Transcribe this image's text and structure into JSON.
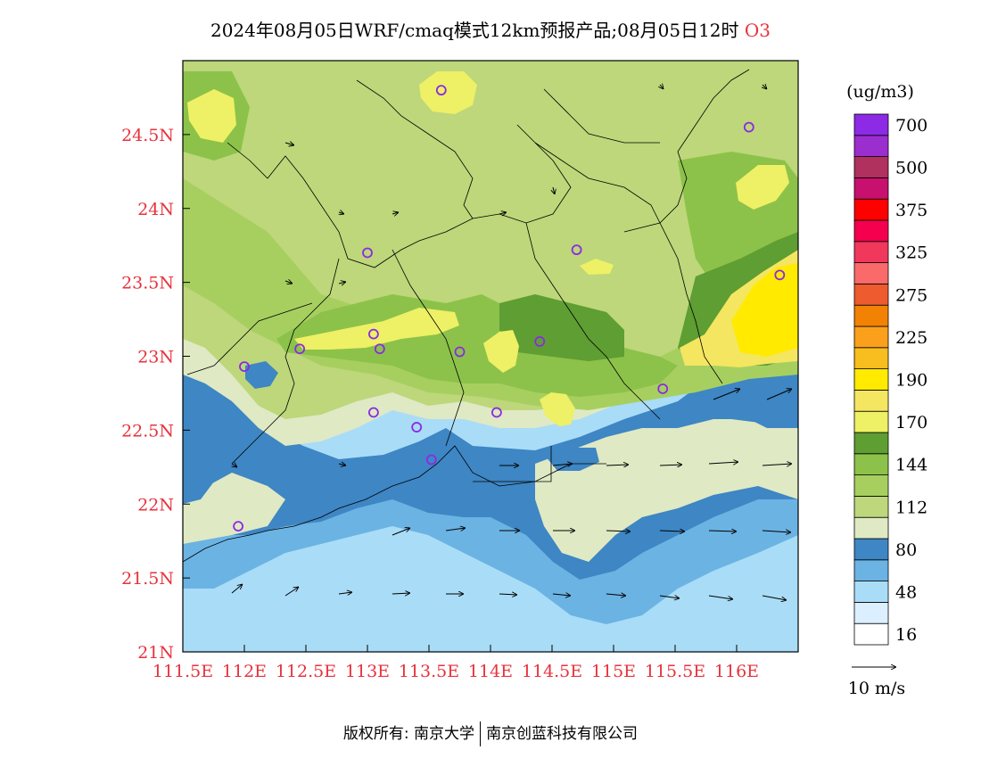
{
  "title": {
    "main": "2024年08月05日WRF/cmaq模式12km预报产品;08月05日12时",
    "variable": "O3"
  },
  "map": {
    "lon_range": [
      111.5,
      116.5
    ],
    "lat_range": [
      21,
      25
    ],
    "x_ticks": [
      {
        "value": 111.5,
        "label": "111.5E"
      },
      {
        "value": 112,
        "label": "112E"
      },
      {
        "value": 112.5,
        "label": "112.5E"
      },
      {
        "value": 113,
        "label": "113E"
      },
      {
        "value": 113.5,
        "label": "113.5E"
      },
      {
        "value": 114,
        "label": "114E"
      },
      {
        "value": 114.5,
        "label": "114.5E"
      },
      {
        "value": 115,
        "label": "115E"
      },
      {
        "value": 115.5,
        "label": "115.5E"
      },
      {
        "value": 116,
        "label": "116E"
      }
    ],
    "y_ticks": [
      {
        "value": 21,
        "label": "21N"
      },
      {
        "value": 21.5,
        "label": "21.5N"
      },
      {
        "value": 22,
        "label": "22N"
      },
      {
        "value": 22.5,
        "label": "22.5N"
      },
      {
        "value": 23,
        "label": "23N"
      },
      {
        "value": 23.5,
        "label": "23.5N"
      },
      {
        "value": 24,
        "label": "24N"
      },
      {
        "value": 24.5,
        "label": "24.5N"
      }
    ],
    "stations": [
      {
        "lon": 113.6,
        "lat": 24.8
      },
      {
        "lon": 116.1,
        "lat": 24.55
      },
      {
        "lon": 113.0,
        "lat": 23.7
      },
      {
        "lon": 114.7,
        "lat": 23.72
      },
      {
        "lon": 116.35,
        "lat": 23.55
      },
      {
        "lon": 112.45,
        "lat": 23.05
      },
      {
        "lon": 113.05,
        "lat": 23.15
      },
      {
        "lon": 113.1,
        "lat": 23.05
      },
      {
        "lon": 113.75,
        "lat": 23.03
      },
      {
        "lon": 114.4,
        "lat": 23.1
      },
      {
        "lon": 112.0,
        "lat": 22.93
      },
      {
        "lon": 115.4,
        "lat": 22.78
      },
      {
        "lon": 113.05,
        "lat": 22.62
      },
      {
        "lon": 113.4,
        "lat": 22.52
      },
      {
        "lon": 114.05,
        "lat": 22.62
      },
      {
        "lon": 113.52,
        "lat": 22.3
      },
      {
        "lon": 111.95,
        "lat": 21.85
      }
    ]
  },
  "colorbar": {
    "unit": "(ug/m3)",
    "colors": [
      "#ffffff",
      "#dcefff",
      "#a9dcf7",
      "#6bb3e3",
      "#3e86c4",
      "#dfe9c4",
      "#bdd77a",
      "#a7cf60",
      "#8cc24a",
      "#5e9e32",
      "#eef065",
      "#f4e660",
      "#ffea00",
      "#f8bd1e",
      "#fba01c",
      "#f28204",
      "#ee5b2e",
      "#fb6a6a",
      "#f0385c",
      "#f5004e",
      "#ff0000",
      "#c8106e",
      "#b0305e",
      "#9a2ecf",
      "#8c2ae6"
    ],
    "labels": [
      {
        "index": 1,
        "text": "16"
      },
      {
        "index": 3,
        "text": "48"
      },
      {
        "index": 5,
        "text": "80"
      },
      {
        "index": 7,
        "text": "112"
      },
      {
        "index": 9,
        "text": "144"
      },
      {
        "index": 11,
        "text": "170"
      },
      {
        "index": 13,
        "text": "190"
      },
      {
        "index": 15,
        "text": "225"
      },
      {
        "index": 17,
        "text": "275"
      },
      {
        "index": 19,
        "text": "325"
      },
      {
        "index": 21,
        "text": "375"
      },
      {
        "index": 23,
        "text": "500"
      },
      {
        "index": 25,
        "text": "700"
      }
    ]
  },
  "wind_legend": {
    "label": "10 m/s"
  },
  "footer": {
    "left": "版权所有: 南京大学",
    "right": "南京创蓝科技有限公司"
  }
}
